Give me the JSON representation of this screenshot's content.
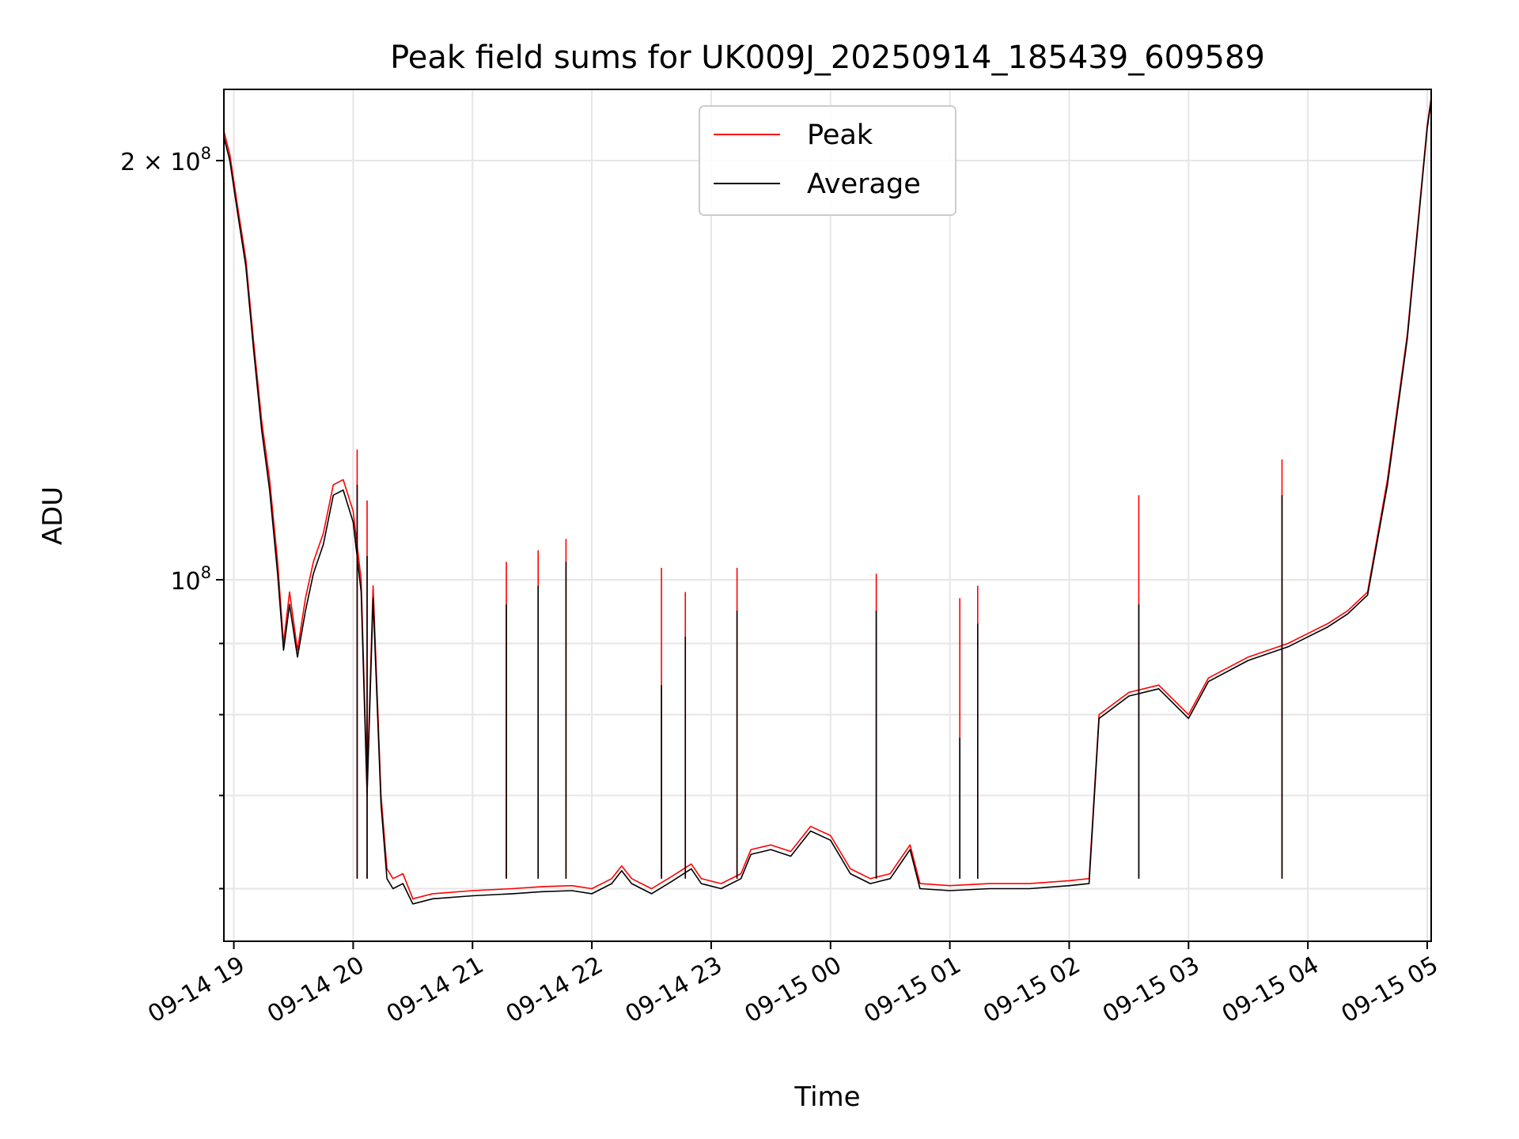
{
  "chart_data": {
    "type": "line",
    "title": "Peak field sums for UK009J_20250914_185439_609589",
    "xlabel": "Time",
    "ylabel": "ADU",
    "y_scale": "log",
    "ylim": [
      55000000,
      225000000
    ],
    "xlim": [
      "2025-09-14 18:55",
      "2025-09-15 05:02"
    ],
    "x_ticks": [
      "09-14 19",
      "09-14 20",
      "09-14 21",
      "09-14 22",
      "09-14 23",
      "09-15 00",
      "09-15 01",
      "09-15 02",
      "09-15 03",
      "09-15 04",
      "09-15 05"
    ],
    "y_ticks": [
      {
        "value": 100000000,
        "base": "10",
        "exp": "8",
        "coef": ""
      },
      {
        "value": 200000000,
        "base": "10",
        "exp": "8",
        "coef": "2 × "
      }
    ],
    "grid": true,
    "legend_position": "upper center",
    "series": [
      {
        "name": "Peak",
        "color": "#ff0000",
        "points": [
          [
            "2025-09-14 18:55",
            210000000
          ],
          [
            "2025-09-14 18:58",
            202000000
          ],
          [
            "2025-09-14 19:02",
            185000000
          ],
          [
            "2025-09-14 19:06",
            170000000
          ],
          [
            "2025-09-14 19:10",
            148000000
          ],
          [
            "2025-09-14 19:14",
            130000000
          ],
          [
            "2025-09-14 19:18",
            118000000
          ],
          [
            "2025-09-14 19:22",
            103000000
          ],
          [
            "2025-09-14 19:25",
            90000000
          ],
          [
            "2025-09-14 19:28",
            98000000
          ],
          [
            "2025-09-14 19:32",
            89000000
          ],
          [
            "2025-09-14 19:36",
            97000000
          ],
          [
            "2025-09-14 19:40",
            103000000
          ],
          [
            "2025-09-14 19:45",
            108000000
          ],
          [
            "2025-09-14 19:50",
            117000000
          ],
          [
            "2025-09-14 19:55",
            118000000
          ],
          [
            "2025-09-14 20:00",
            112000000
          ],
          [
            "2025-09-14 20:04",
            100000000
          ],
          [
            "2025-09-14 20:07",
            71000000
          ],
          [
            "2025-09-14 20:10",
            99000000
          ],
          [
            "2025-09-14 20:14",
            70000000
          ],
          [
            "2025-09-14 20:17",
            62000000
          ],
          [
            "2025-09-14 20:20",
            61000000
          ],
          [
            "2025-09-14 20:25",
            61500000
          ],
          [
            "2025-09-14 20:30",
            59000000
          ],
          [
            "2025-09-14 20:40",
            59500000
          ],
          [
            "2025-09-14 21:00",
            59800000
          ],
          [
            "2025-09-14 21:20",
            60000000
          ],
          [
            "2025-09-14 21:35",
            60200000
          ],
          [
            "2025-09-14 21:50",
            60300000
          ],
          [
            "2025-09-14 22:00",
            60000000
          ],
          [
            "2025-09-14 22:10",
            61000000
          ],
          [
            "2025-09-14 22:15",
            62300000
          ],
          [
            "2025-09-14 22:20",
            61000000
          ],
          [
            "2025-09-14 22:30",
            60000000
          ],
          [
            "2025-09-14 22:40",
            61200000
          ],
          [
            "2025-09-14 22:50",
            62500000
          ],
          [
            "2025-09-14 22:55",
            61000000
          ],
          [
            "2025-09-14 23:05",
            60500000
          ],
          [
            "2025-09-14 23:15",
            61500000
          ],
          [
            "2025-09-14 23:20",
            64000000
          ],
          [
            "2025-09-14 23:30",
            64500000
          ],
          [
            "2025-09-14 23:40",
            63800000
          ],
          [
            "2025-09-14 23:50",
            66500000
          ],
          [
            "2025-09-15 00:00",
            65500000
          ],
          [
            "2025-09-15 00:10",
            62000000
          ],
          [
            "2025-09-15 00:20",
            61000000
          ],
          [
            "2025-09-15 00:30",
            61500000
          ],
          [
            "2025-09-15 00:40",
            64500000
          ],
          [
            "2025-09-15 00:45",
            60500000
          ],
          [
            "2025-09-15 01:00",
            60300000
          ],
          [
            "2025-09-15 01:20",
            60500000
          ],
          [
            "2025-09-15 01:40",
            60500000
          ],
          [
            "2025-09-15 02:00",
            60800000
          ],
          [
            "2025-09-15 02:10",
            61000000
          ],
          [
            "2025-09-15 02:15",
            80000000
          ],
          [
            "2025-09-15 02:30",
            83000000
          ],
          [
            "2025-09-15 02:45",
            84000000
          ],
          [
            "2025-09-15 03:00",
            80000000
          ],
          [
            "2025-09-15 03:10",
            85000000
          ],
          [
            "2025-09-15 03:30",
            88000000
          ],
          [
            "2025-09-15 03:50",
            90000000
          ],
          [
            "2025-09-15 04:10",
            93000000
          ],
          [
            "2025-09-15 04:20",
            95000000
          ],
          [
            "2025-09-15 04:30",
            98000000
          ],
          [
            "2025-09-15 04:40",
            118000000
          ],
          [
            "2025-09-15 04:50",
            150000000
          ],
          [
            "2025-09-15 05:00",
            212000000
          ],
          [
            "2025-09-15 05:02",
            222000000
          ]
        ]
      },
      {
        "name": "Average",
        "color": "#000000",
        "points": [
          [
            "2025-09-14 18:55",
            208000000
          ],
          [
            "2025-09-14 18:58",
            200000000
          ],
          [
            "2025-09-14 19:02",
            183000000
          ],
          [
            "2025-09-14 19:06",
            168000000
          ],
          [
            "2025-09-14 19:10",
            146000000
          ],
          [
            "2025-09-14 19:14",
            128000000
          ],
          [
            "2025-09-14 19:18",
            116000000
          ],
          [
            "2025-09-14 19:22",
            101000000
          ],
          [
            "2025-09-14 19:25",
            89000000
          ],
          [
            "2025-09-14 19:28",
            96000000
          ],
          [
            "2025-09-14 19:32",
            88000000
          ],
          [
            "2025-09-14 19:36",
            95000000
          ],
          [
            "2025-09-14 19:40",
            101000000
          ],
          [
            "2025-09-14 19:45",
            106000000
          ],
          [
            "2025-09-14 19:50",
            115000000
          ],
          [
            "2025-09-14 19:55",
            116000000
          ],
          [
            "2025-09-14 20:00",
            110000000
          ],
          [
            "2025-09-14 20:04",
            98000000
          ],
          [
            "2025-09-14 20:07",
            70000000
          ],
          [
            "2025-09-14 20:10",
            97000000
          ],
          [
            "2025-09-14 20:14",
            69000000
          ],
          [
            "2025-09-14 20:17",
            61000000
          ],
          [
            "2025-09-14 20:20",
            60000000
          ],
          [
            "2025-09-14 20:25",
            60500000
          ],
          [
            "2025-09-14 20:30",
            58500000
          ],
          [
            "2025-09-14 20:40",
            59000000
          ],
          [
            "2025-09-14 21:00",
            59300000
          ],
          [
            "2025-09-14 21:20",
            59500000
          ],
          [
            "2025-09-14 21:35",
            59700000
          ],
          [
            "2025-09-14 21:50",
            59800000
          ],
          [
            "2025-09-14 22:00",
            59500000
          ],
          [
            "2025-09-14 22:10",
            60500000
          ],
          [
            "2025-09-14 22:15",
            61800000
          ],
          [
            "2025-09-14 22:20",
            60500000
          ],
          [
            "2025-09-14 22:30",
            59500000
          ],
          [
            "2025-09-14 22:40",
            60700000
          ],
          [
            "2025-09-14 22:50",
            62000000
          ],
          [
            "2025-09-14 22:55",
            60500000
          ],
          [
            "2025-09-14 23:05",
            60000000
          ],
          [
            "2025-09-14 23:15",
            61000000
          ],
          [
            "2025-09-14 23:20",
            63500000
          ],
          [
            "2025-09-14 23:30",
            64000000
          ],
          [
            "2025-09-14 23:40",
            63300000
          ],
          [
            "2025-09-14 23:50",
            66000000
          ],
          [
            "2025-09-15 00:00",
            65000000
          ],
          [
            "2025-09-15 00:10",
            61500000
          ],
          [
            "2025-09-15 00:20",
            60500000
          ],
          [
            "2025-09-15 00:30",
            61000000
          ],
          [
            "2025-09-15 00:40",
            64000000
          ],
          [
            "2025-09-15 00:45",
            60000000
          ],
          [
            "2025-09-15 01:00",
            59800000
          ],
          [
            "2025-09-15 01:20",
            60000000
          ],
          [
            "2025-09-15 01:40",
            60000000
          ],
          [
            "2025-09-15 02:00",
            60300000
          ],
          [
            "2025-09-15 02:10",
            60500000
          ],
          [
            "2025-09-15 02:15",
            79500000
          ],
          [
            "2025-09-15 02:30",
            82500000
          ],
          [
            "2025-09-15 02:45",
            83500000
          ],
          [
            "2025-09-15 03:00",
            79500000
          ],
          [
            "2025-09-15 03:10",
            84500000
          ],
          [
            "2025-09-15 03:30",
            87500000
          ],
          [
            "2025-09-15 03:50",
            89500000
          ],
          [
            "2025-09-15 04:10",
            92500000
          ],
          [
            "2025-09-15 04:20",
            94500000
          ],
          [
            "2025-09-15 04:30",
            97500000
          ],
          [
            "2025-09-15 04:40",
            117000000
          ],
          [
            "2025-09-15 04:50",
            149000000
          ],
          [
            "2025-09-15 05:00",
            211000000
          ],
          [
            "2025-09-15 05:02",
            221000000
          ]
        ]
      }
    ],
    "spikes": [
      {
        "time": "2025-09-14 20:02",
        "peak": 124000000,
        "average": 117000000
      },
      {
        "time": "2025-09-14 20:07",
        "peak": 114000000,
        "average": 104000000
      },
      {
        "time": "2025-09-14 21:17",
        "peak": 103000000,
        "average": 96000000
      },
      {
        "time": "2025-09-14 21:33",
        "peak": 105000000,
        "average": 99000000
      },
      {
        "time": "2025-09-14 21:47",
        "peak": 107000000,
        "average": 103000000
      },
      {
        "time": "2025-09-14 22:35",
        "peak": 102000000,
        "average": 84000000
      },
      {
        "time": "2025-09-14 22:47",
        "peak": 98000000,
        "average": 91000000
      },
      {
        "time": "2025-09-14 23:13",
        "peak": 102000000,
        "average": 95000000
      },
      {
        "time": "2025-09-15 00:23",
        "peak": 101000000,
        "average": 95000000
      },
      {
        "time": "2025-09-15 01:05",
        "peak": 97000000,
        "average": 77000000
      },
      {
        "time": "2025-09-15 01:14",
        "peak": 99000000,
        "average": 93000000
      },
      {
        "time": "2025-09-15 02:35",
        "peak": 115000000,
        "average": 96000000
      },
      {
        "time": "2025-09-15 03:47",
        "peak": 122000000,
        "average": 115000000
      }
    ]
  }
}
